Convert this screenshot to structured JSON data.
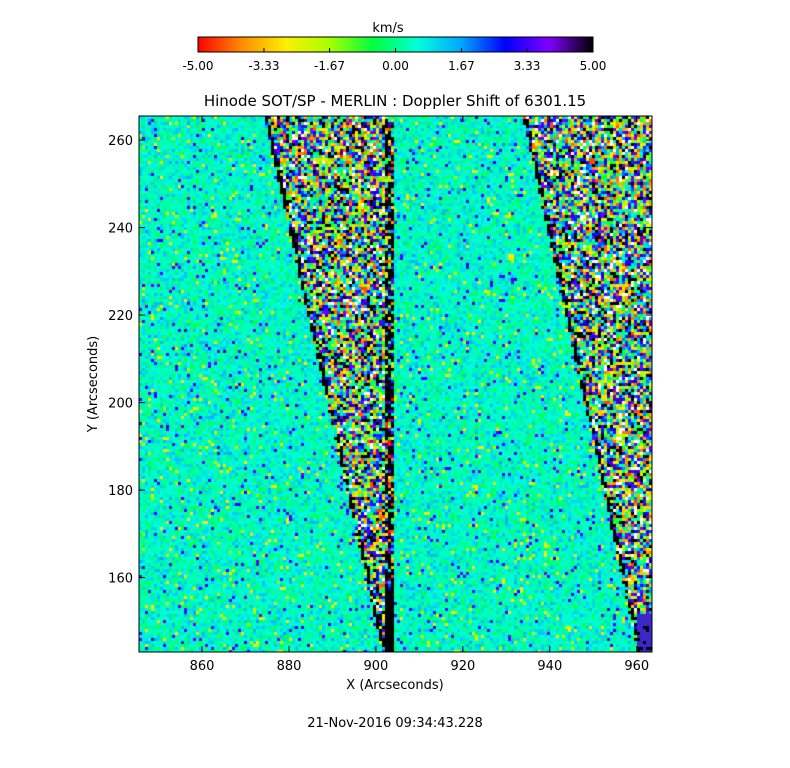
{
  "chart_data": {
    "type": "heatmap",
    "title": "Hinode SOT/SP - MERLIN : Doppler Shift of 6301.15",
    "xlabel": "X (Arcseconds)",
    "ylabel": "Y (Arcseconds)",
    "xlim": [
      845.5,
      963.5
    ],
    "ylim": [
      143,
      265.5
    ],
    "xticks": [
      860,
      880,
      900,
      920,
      940,
      960
    ],
    "yticks": [
      160,
      180,
      200,
      220,
      240,
      260
    ],
    "colorbar": {
      "unit": "km/s",
      "range": [
        -5.0,
        5.0
      ],
      "tick_labels": [
        "-5.00",
        "-3.33",
        "-1.67",
        "0.00",
        "1.67",
        "3.33",
        "5.00"
      ],
      "tick_values": [
        -5.0,
        -3.33,
        -1.67,
        0.0,
        1.67,
        3.33,
        5.0
      ],
      "colormap": [
        "#ff0000",
        "#ff8c00",
        "#ffee00",
        "#a6ff00",
        "#00ff40",
        "#00ffd9",
        "#00a6ff",
        "#0000ff",
        "#8000ff",
        "#000000"
      ]
    },
    "panels": [
      {
        "x_left": 845.5,
        "x_right": 904.0,
        "noise_edge_top_x": 874.0,
        "noise_edge_bottom_x": 901.2,
        "gap_x": [
          901.5,
          903.5
        ],
        "gap_from_y": 143,
        "gap_to_y": 264
      },
      {
        "x_left": 904.0,
        "x_right": 963.5,
        "noise_edge_top_x": 933.5,
        "noise_edge_bottom_x": 960.0,
        "dark_strip_x": [
          960.0,
          963.5
        ],
        "dark_strip_to_y": 152
      }
    ]
  },
  "timestamp": "21-Nov-2016 09:34:43.228"
}
